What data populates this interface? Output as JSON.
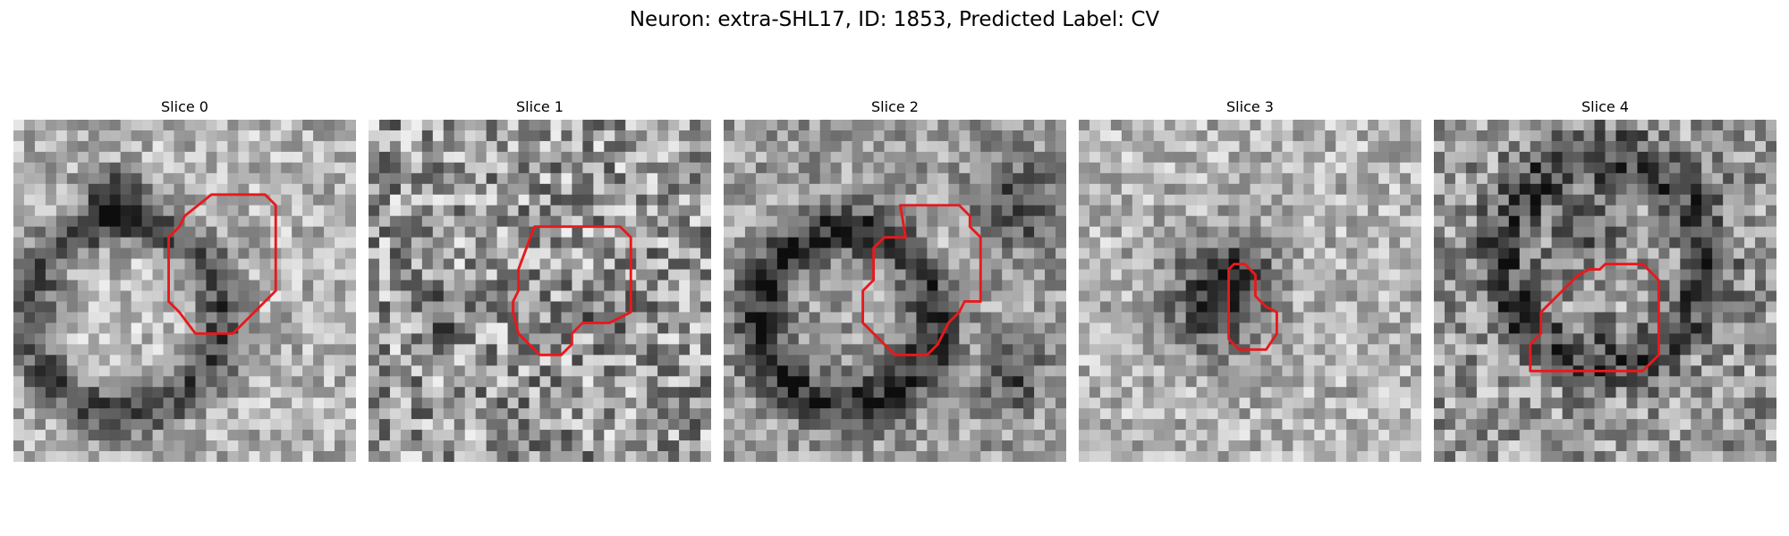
{
  "figure": {
    "title": "Neuron: extra-SHL17, ID: 1853, Predicted Label: CV"
  },
  "panels": [
    {
      "title": "Slice 0"
    },
    {
      "title": "Slice 1"
    },
    {
      "title": "Slice 2"
    },
    {
      "title": "Slice 3"
    },
    {
      "title": "Slice 4"
    }
  ],
  "colors": {
    "contour": "#e8191c",
    "image_colormap": "grayscale"
  }
}
